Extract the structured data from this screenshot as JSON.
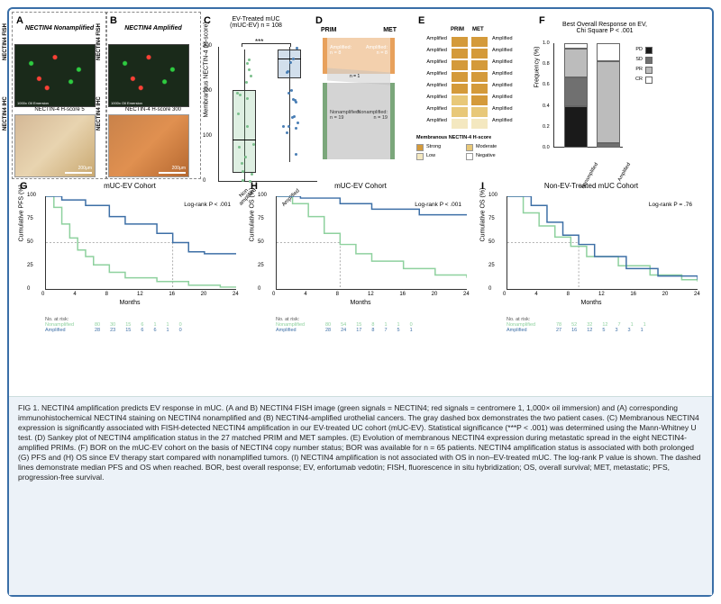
{
  "panelA": {
    "title": "NECTIN4 Nonamplified",
    "fish_label": "NECTIN4 FISH",
    "ihc_label": "NECTIN4 IHC",
    "sub": "NECTIN-4 H-score 5",
    "oil": "1000x Oil Emersion"
  },
  "panelB": {
    "title": "NECTIN4 Amplified",
    "fish_label": "NECTIN4 FISH",
    "ihc_label": "NECTIN4 IHC",
    "sub": "NECTIN-4 H-score 300",
    "oil": "1000x Oil Emersion"
  },
  "panelC": {
    "top_label": "EV-Treated mUC\n(mUC-EV) n = 108",
    "ylabel": "Membranous NECTIN-4 (H-score)",
    "ylim": [
      0,
      300
    ],
    "ytick_step": 100,
    "sig": "***",
    "groups": [
      "Non\namplified",
      "Amplified"
    ],
    "colors": {
      "NonAmplified": "#7bbf8c",
      "Amplified": "#4a7fb5"
    },
    "box_nonamp": {
      "q1": 20,
      "med": 95,
      "q3": 205,
      "min": 0,
      "max": 295
    },
    "box_amp": {
      "q1": 230,
      "med": 275,
      "q3": 295,
      "min": 45,
      "max": 300
    }
  },
  "panelD": {
    "col_headers": [
      "PRIM",
      "MET"
    ],
    "amp": {
      "label": "Amplified:\nn = 8",
      "color": "#e8a15c"
    },
    "nonamp": {
      "label": "Nonamplified:\nn = 19",
      "color": "#b8b8b8"
    },
    "cross_label": "n = 1"
  },
  "panelE": {
    "col_headers": [
      "PRIM",
      "MET"
    ],
    "rows": [
      {
        "l": "Amplified",
        "r": "Amplified",
        "c1": "#d49a3a",
        "c2": "#d49a3a"
      },
      {
        "l": "Amplified",
        "r": "Amplified",
        "c1": "#d49a3a",
        "c2": "#d49a3a"
      },
      {
        "l": "Amplified",
        "r": "Amplified",
        "c1": "#d49a3a",
        "c2": "#d49a3a"
      },
      {
        "l": "Amplified",
        "r": "Amplified",
        "c1": "#d49a3a",
        "c2": "#d49a3a"
      },
      {
        "l": "Amplified",
        "r": "Amplified",
        "c1": "#d49a3a",
        "c2": "#d49a3a"
      },
      {
        "l": "Amplified",
        "r": "Amplified",
        "c1": "#e8c878",
        "c2": "#d49a3a"
      },
      {
        "l": "Amplified",
        "r": "Amplified",
        "c1": "#e8c878",
        "c2": "#e8c878"
      },
      {
        "l": "Amplified",
        "r": "Amplified",
        "c1": "#f4e8c0",
        "c2": "#f4e8c0"
      }
    ],
    "legend_title": "Membranous NECTIN-4 H-score",
    "legend": [
      {
        "label": "Strong",
        "color": "#d49a3a"
      },
      {
        "label": "Moderate",
        "color": "#e8c878"
      },
      {
        "label": "Low",
        "color": "#f4e8c0"
      },
      {
        "label": "Negative",
        "color": "#ffffff"
      }
    ]
  },
  "panelF": {
    "title": "Best Overall Response on EV,\nChi Square P < .001",
    "ylabel": "Frequency (%)",
    "ylim": [
      0,
      1.0
    ],
    "ytick_step": 0.2,
    "categories": [
      "Nonamplified",
      "Amplified"
    ],
    "legend": [
      {
        "label": "PD",
        "color": "#1a1a1a"
      },
      {
        "label": "SD",
        "color": "#707070"
      },
      {
        "label": "PR",
        "color": "#bcbcbc"
      },
      {
        "label": "CR",
        "color": "#ffffff"
      }
    ],
    "stacks": {
      "Nonamplified": [
        {
          "k": "PD",
          "v": 0.4
        },
        {
          "k": "SD",
          "v": 0.27
        },
        {
          "k": "PR",
          "v": 0.28
        },
        {
          "k": "CR",
          "v": 0.05
        }
      ],
      "Amplified": [
        {
          "k": "PD",
          "v": 0.0
        },
        {
          "k": "SD",
          "v": 0.04
        },
        {
          "k": "PR",
          "v": 0.79
        },
        {
          "k": "CR",
          "v": 0.17
        }
      ]
    }
  },
  "panelG": {
    "title": "mUC-EV Cohort",
    "ylabel": "Cumulative PFS (%)",
    "xlabel": "Months",
    "pvalue": "Log-rank P < .001",
    "ylim": [
      0,
      100
    ],
    "xlim": [
      0,
      24
    ],
    "xtick_step": 4,
    "ytick_step": 25,
    "colors": {
      "Nonamplified": "#8ed19e",
      "Amplified": "#3d6fa6"
    },
    "nonamp_line": [
      [
        0,
        100
      ],
      [
        1,
        88
      ],
      [
        2,
        70
      ],
      [
        3,
        55
      ],
      [
        4,
        42
      ],
      [
        5,
        35
      ],
      [
        6,
        26
      ],
      [
        8,
        18
      ],
      [
        10,
        12
      ],
      [
        14,
        8
      ],
      [
        18,
        4
      ],
      [
        22,
        2
      ],
      [
        24,
        2
      ]
    ],
    "amp_line": [
      [
        0,
        100
      ],
      [
        2,
        96
      ],
      [
        5,
        90
      ],
      [
        8,
        78
      ],
      [
        10,
        70
      ],
      [
        14,
        60
      ],
      [
        16,
        50
      ],
      [
        18,
        40
      ],
      [
        20,
        38
      ],
      [
        24,
        38
      ]
    ],
    "dash_x": 16,
    "dash_y": 50,
    "risk": {
      "label": "No. at risk:",
      "Nonamplified": [
        "80",
        "30",
        "15",
        "6",
        "1",
        "1",
        "0"
      ],
      "Amplified": [
        "28",
        "23",
        "15",
        "6",
        "6",
        "1",
        "0"
      ]
    }
  },
  "panelH": {
    "title": "mUC-EV Cohort",
    "ylabel": "Cumulative OS (%)",
    "xlabel": "Months",
    "pvalue": "Log-rank P < .001",
    "ylim": [
      0,
      100
    ],
    "xlim": [
      0,
      24
    ],
    "xtick_step": 4,
    "ytick_step": 25,
    "colors": {
      "Nonamplified": "#8ed19e",
      "Amplified": "#3d6fa6"
    },
    "nonamp_line": [
      [
        0,
        100
      ],
      [
        2,
        92
      ],
      [
        4,
        78
      ],
      [
        6,
        60
      ],
      [
        8,
        48
      ],
      [
        10,
        38
      ],
      [
        12,
        30
      ],
      [
        16,
        22
      ],
      [
        20,
        15
      ],
      [
        24,
        12
      ]
    ],
    "amp_line": [
      [
        0,
        100
      ],
      [
        3,
        98
      ],
      [
        8,
        92
      ],
      [
        12,
        86
      ],
      [
        18,
        80
      ],
      [
        24,
        80
      ]
    ],
    "dash_x": 8,
    "dash_y": 50,
    "risk": {
      "label": "No. at risk:",
      "Nonamplified": [
        "80",
        "54",
        "15",
        "8",
        "1",
        "1",
        "0"
      ],
      "Amplified": [
        "28",
        "24",
        "17",
        "8",
        "7",
        "5",
        "1"
      ]
    }
  },
  "panelI": {
    "title": "Non-EV-Treated mUC Cohort",
    "ylabel": "Cumulative OS (%)",
    "xlabel": "Months",
    "pvalue": "Log-rank P = .76",
    "ylim": [
      0,
      100
    ],
    "xlim": [
      0,
      24
    ],
    "xtick_step": 4,
    "ytick_step": 25,
    "colors": {
      "Nonamplified": "#8ed19e",
      "Amplified": "#3d6fa6"
    },
    "nonamp_line": [
      [
        0,
        100
      ],
      [
        2,
        82
      ],
      [
        4,
        68
      ],
      [
        6,
        56
      ],
      [
        8,
        46
      ],
      [
        10,
        35
      ],
      [
        14,
        25
      ],
      [
        18,
        15
      ],
      [
        22,
        10
      ],
      [
        24,
        8
      ]
    ],
    "amp_line": [
      [
        0,
        100
      ],
      [
        3,
        90
      ],
      [
        5,
        72
      ],
      [
        7,
        58
      ],
      [
        9,
        48
      ],
      [
        11,
        35
      ],
      [
        15,
        22
      ],
      [
        19,
        14
      ],
      [
        24,
        10
      ]
    ],
    "dash_x": 9,
    "dash_y": 50,
    "risk": {
      "label": "No. at risk:",
      "Nonamplified": [
        "78",
        "52",
        "32",
        "12",
        "7",
        "1",
        "1"
      ],
      "Amplified": [
        "27",
        "16",
        "12",
        "5",
        "3",
        "3",
        "1"
      ]
    }
  },
  "caption": {
    "text": "FIG 1. NECTIN4 amplification predicts EV response in mUC. (A and B) NECTIN4 FISH image (green signals = NECTIN4; red signals = centromere 1, 1,000× oil immersion) and (A) corresponding immunohistochemical NECTIN4 staining on NECTIN4 nonamplified and (B) NECTIN4-amplified urothelial cancers. The gray dashed box demonstrates the two patient cases. (C) Membranous NECTIN4 expression is significantly associated with FISH-detected NECTIN4 amplification in our EV-treated UC cohort (mUC-EV). Statistical significance (***P < .001) was determined using the Mann-Whitney U test. (D) Sankey plot of NECTIN4 amplification status in the 27 matched PRIM and MET samples. (E) Evolution of membranous NECTIN4 expression during metastatic spread in the eight NECTIN4-amplified PRIMs. (F) BOR on the mUC-EV cohort on the basis of NECTIN4 copy number status; BOR was available for n = 65 patients. NECTIN4 amplification status is associated with both prolonged (G) PFS and (H) OS since EV therapy start compared with nonamplified tumors. (I) NECTIN4 amplification is not associated with OS in non–EV-treated mUC. The log-rank P value is shown. The dashed lines demonstrate median PFS and OS when reached. BOR, best overall response; EV, enfortumab vedotin; FISH, fluorescence in situ hybridization; OS, overall survival; MET, metastatic; PFS, progression-free survival."
  }
}
